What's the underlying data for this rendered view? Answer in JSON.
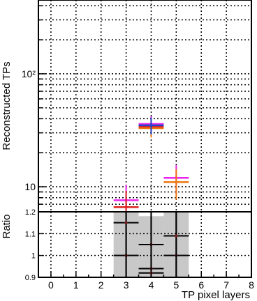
{
  "chart_data": [
    {
      "type": "scatter",
      "panel": "main",
      "ylabel": "Reconstructed TPs",
      "yscale": "log",
      "ylim": [
        6,
        450
      ],
      "xlim": [
        -0.5,
        8
      ],
      "grid": true,
      "yticks": [
        {
          "value": 10,
          "label": "10"
        },
        {
          "value": 100,
          "label": "10²"
        }
      ],
      "series": [
        {
          "color": "#ee22ee",
          "marker": "cross",
          "points": [
            {
              "x": 3,
              "y": 7.6,
              "yerr": 2.8
            },
            {
              "x": 4,
              "y": 36,
              "yerr": 6
            },
            {
              "x": 5,
              "y": 12,
              "yerr": 3.5
            }
          ]
        },
        {
          "color": "#dd2222",
          "marker": "cross",
          "points": [
            {
              "x": 3,
              "y": 6.6,
              "yerr": 2.6
            },
            {
              "x": 4,
              "y": 34,
              "yerr": 5.8
            }
          ]
        },
        {
          "color": "#ee7711",
          "marker": "cross",
          "points": [
            {
              "x": 4,
              "y": 33,
              "yerr": 5.7
            },
            {
              "x": 5,
              "y": 11,
              "yerr": 3.3
            }
          ]
        },
        {
          "color": "#2244cc",
          "marker": "cross",
          "points": [
            {
              "x": 4,
              "y": 35,
              "yerr": 5.9
            }
          ]
        }
      ]
    },
    {
      "type": "scatter",
      "panel": "ratio",
      "ylabel": "Ratio",
      "xlabel": "TP pixel layers",
      "ylim": [
        0.9,
        1.2
      ],
      "xlim": [
        -0.5,
        8
      ],
      "grid": true,
      "xticks": [
        "0",
        "1",
        "2",
        "3",
        "4",
        "5",
        "6",
        "7",
        "8"
      ],
      "yticks": [
        {
          "value": 0.9,
          "label": "0.9"
        },
        {
          "value": 1.0,
          "label": "1"
        },
        {
          "value": 1.1,
          "label": "1.1"
        },
        {
          "value": 1.2,
          "label": "1.2"
        }
      ],
      "band": {
        "color": "#c8c8c8",
        "bins": [
          {
            "x0": 2.5,
            "x1": 3.5,
            "lo": 0.9,
            "hi": 1.2
          },
          {
            "x0": 3.5,
            "x1": 4.5,
            "lo": 0.9,
            "hi": 1.18
          },
          {
            "x0": 4.5,
            "x1": 5.5,
            "lo": 0.9,
            "hi": 1.2
          }
        ]
      },
      "series": [
        {
          "color": "#000000",
          "marker": "cross",
          "points": [
            {
              "x": 3,
              "y": 1.0,
              "yerr": 0.3
            },
            {
              "x": 3,
              "y": 1.15,
              "yerr": 0.3
            },
            {
              "x": 4,
              "y": 1.05,
              "yerr": 0.3
            },
            {
              "x": 4,
              "y": 0.94,
              "yerr": 0.3
            },
            {
              "x": 4,
              "y": 0.92,
              "yerr": 0.3
            },
            {
              "x": 5,
              "y": 1.0,
              "yerr": 0.3
            },
            {
              "x": 5,
              "y": 1.09,
              "yerr": 0.3
            }
          ]
        }
      ]
    }
  ]
}
